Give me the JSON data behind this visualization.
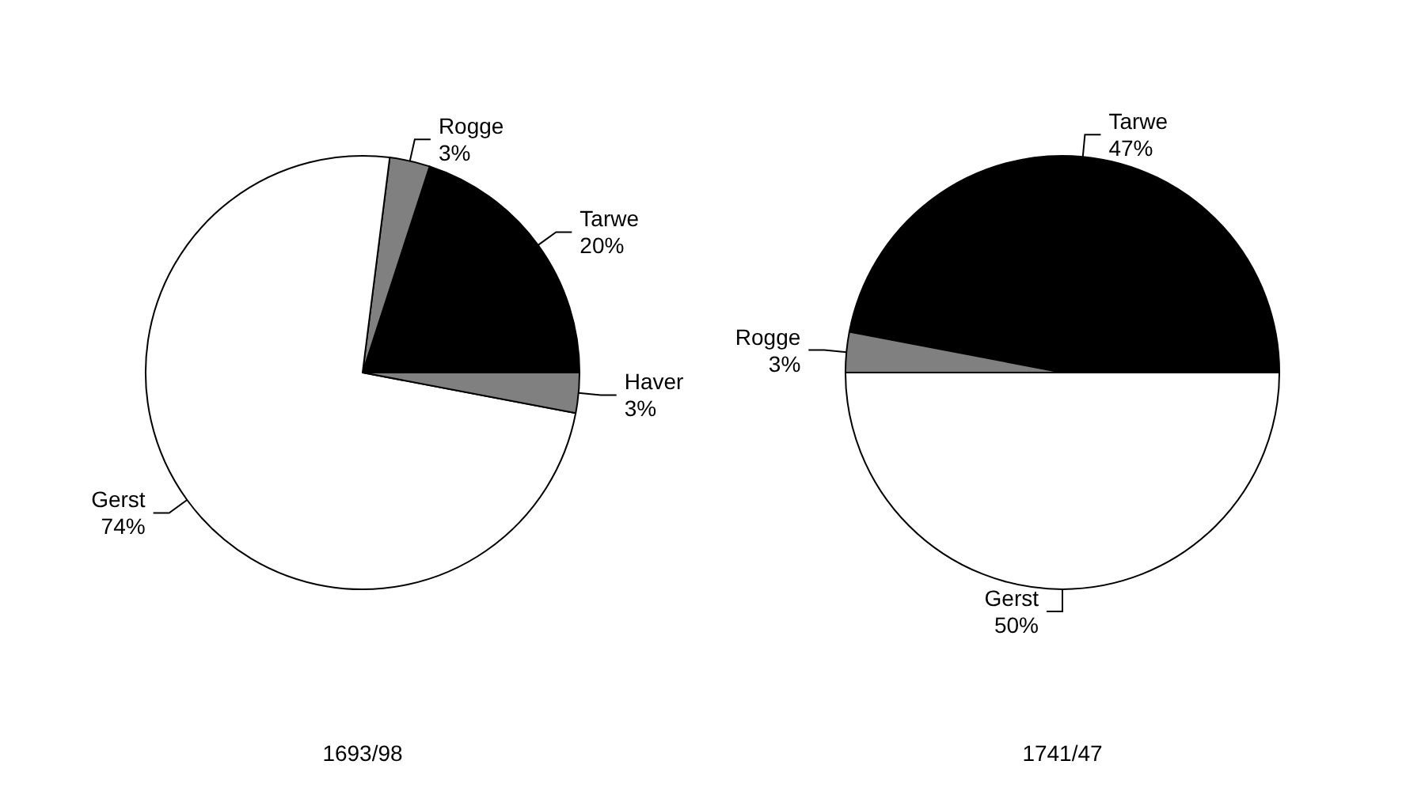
{
  "chart_data": [
    {
      "type": "pie",
      "title": "1693/98",
      "categories": [
        "Tarwe",
        "Rogge",
        "Gerst",
        "Haver"
      ],
      "values": [
        20,
        3,
        74,
        3
      ],
      "value_labels": [
        "20%",
        "3%",
        "74%",
        "3%"
      ],
      "colors": [
        "#000000",
        "#808080",
        "#ffffff",
        "#808080"
      ],
      "legend": false
    },
    {
      "type": "pie",
      "title": "1741/47",
      "categories": [
        "Tarwe",
        "Rogge",
        "Gerst"
      ],
      "values": [
        47,
        3,
        50
      ],
      "value_labels": [
        "47%",
        "3%",
        "50%"
      ],
      "colors": [
        "#000000",
        "#808080",
        "#ffffff"
      ],
      "legend": false
    }
  ]
}
